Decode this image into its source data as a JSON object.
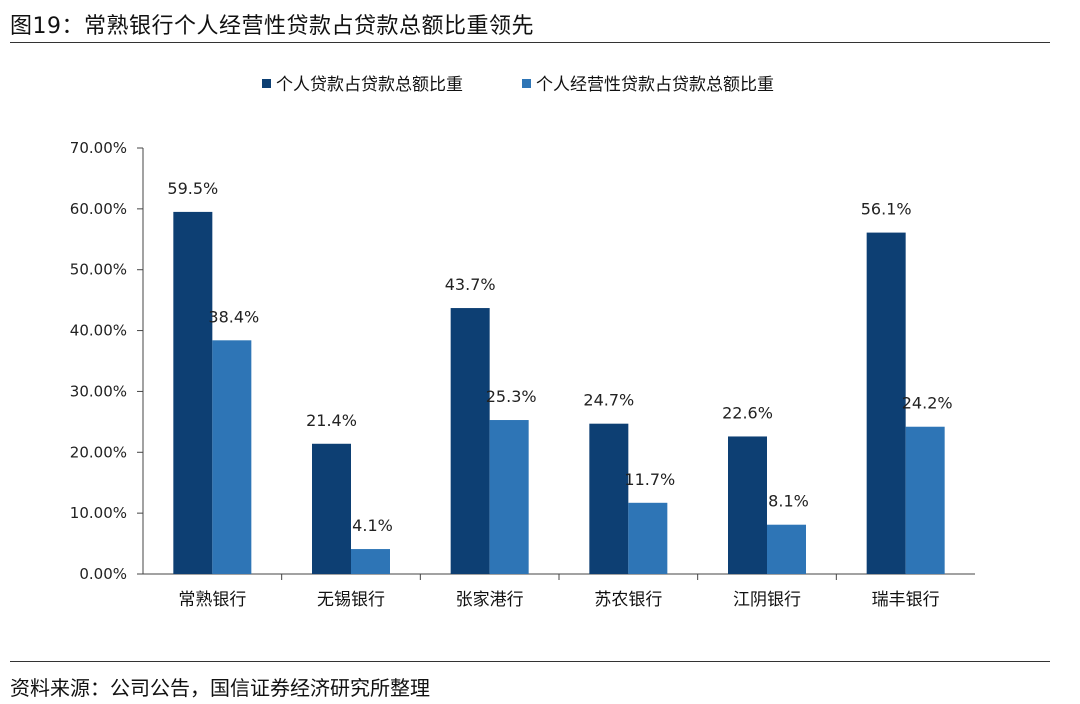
{
  "figure": {
    "title": "图19：常熟银行个人经营性贷款占贷款总额比重领先",
    "source": "资料来源：公司公告，国信证券经济研究所整理"
  },
  "chart_data": {
    "type": "bar",
    "categories": [
      "常熟银行",
      "无锡银行",
      "张家港行",
      "苏农银行",
      "江阴银行",
      "瑞丰银行"
    ],
    "series": [
      {
        "name": "个人贷款占贷款总额比重",
        "values": [
          59.5,
          21.4,
          43.7,
          24.7,
          22.6,
          56.1
        ],
        "color": "#0d3f73"
      },
      {
        "name": "个人经营性贷款占贷款总额比重",
        "values": [
          38.4,
          4.1,
          25.3,
          11.7,
          8.1,
          24.2
        ],
        "color": "#2e75b6"
      }
    ],
    "data_labels": [
      [
        "59.5%",
        "21.4%",
        "43.7%",
        "24.7%",
        "22.6%",
        "56.1%"
      ],
      [
        "38.4%",
        "4.1%",
        "25.3%",
        "11.7%",
        "8.1%",
        "24.2%"
      ]
    ],
    "yticks": [
      "0.00%",
      "10.00%",
      "20.00%",
      "30.00%",
      "40.00%",
      "50.00%",
      "60.00%",
      "70.00%"
    ],
    "ylim": [
      0,
      70
    ],
    "grid": false,
    "legend_position": "top"
  }
}
